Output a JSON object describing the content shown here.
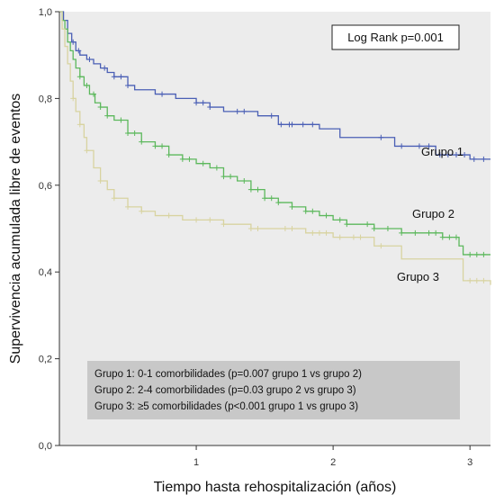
{
  "chart_data": {
    "type": "line",
    "xlabel": "Tiempo hasta rehospitalización (años)",
    "ylabel": "Supervivencia acumulada libre de eventos",
    "xlim": [
      0,
      3.15
    ],
    "ylim": [
      0,
      1.0
    ],
    "x_ticks": [
      {
        "value": 1,
        "label": "1"
      },
      {
        "value": 2,
        "label": "2"
      },
      {
        "value": 3,
        "label": "3"
      }
    ],
    "y_ticks": [
      {
        "value": 0.0,
        "label": "0,0"
      },
      {
        "value": 0.2,
        "label": "0,2"
      },
      {
        "value": 0.4,
        "label": "0,4"
      },
      {
        "value": 0.6,
        "label": "0,6"
      },
      {
        "value": 0.8,
        "label": "0,8"
      },
      {
        "value": 1.0,
        "label": "1,0"
      }
    ],
    "grid": false,
    "background_color": "#ececec",
    "stats_box": "Log Rank p=0.001",
    "series": [
      {
        "name": "Grupo 1",
        "color": "#4a5fb5",
        "x": [
          0,
          0.03,
          0.06,
          0.09,
          0.12,
          0.15,
          0.2,
          0.25,
          0.3,
          0.35,
          0.4,
          0.5,
          0.55,
          0.6,
          0.7,
          0.8,
          0.85,
          0.95,
          1.0,
          1.05,
          1.1,
          1.2,
          1.3,
          1.45,
          1.6,
          1.75,
          1.9,
          2.0,
          2.05,
          2.2,
          2.3,
          2.45,
          2.6,
          2.75,
          2.85,
          3.0,
          3.15
        ],
        "y": [
          1.0,
          0.98,
          0.95,
          0.93,
          0.91,
          0.9,
          0.89,
          0.88,
          0.87,
          0.86,
          0.85,
          0.83,
          0.82,
          0.82,
          0.81,
          0.81,
          0.8,
          0.8,
          0.79,
          0.79,
          0.78,
          0.77,
          0.77,
          0.76,
          0.74,
          0.74,
          0.73,
          0.73,
          0.71,
          0.71,
          0.71,
          0.69,
          0.69,
          0.67,
          0.67,
          0.66,
          0.66
        ],
        "censor_x": [
          0.1,
          0.14,
          0.22,
          0.33,
          0.4,
          0.45,
          0.5,
          0.75,
          1.0,
          1.05,
          1.1,
          1.3,
          1.35,
          1.55,
          1.62,
          1.68,
          1.7,
          1.78,
          1.85,
          2.35,
          2.5,
          2.63,
          2.7,
          2.78,
          2.84,
          2.9,
          2.96,
          3.03,
          3.1
        ]
      },
      {
        "name": "Grupo 2",
        "color": "#5cb85c",
        "x": [
          0,
          0.02,
          0.04,
          0.06,
          0.08,
          0.1,
          0.12,
          0.15,
          0.18,
          0.22,
          0.26,
          0.3,
          0.35,
          0.4,
          0.5,
          0.6,
          0.7,
          0.8,
          0.9,
          1.0,
          1.1,
          1.2,
          1.3,
          1.4,
          1.5,
          1.6,
          1.7,
          1.8,
          1.9,
          2.0,
          2.1,
          2.2,
          2.3,
          2.4,
          2.5,
          2.6,
          2.7,
          2.8,
          2.9,
          2.92,
          2.95,
          3.15
        ],
        "y": [
          1.0,
          0.98,
          0.96,
          0.93,
          0.91,
          0.89,
          0.87,
          0.85,
          0.83,
          0.81,
          0.79,
          0.78,
          0.76,
          0.75,
          0.72,
          0.7,
          0.69,
          0.67,
          0.66,
          0.65,
          0.64,
          0.62,
          0.61,
          0.59,
          0.57,
          0.56,
          0.55,
          0.54,
          0.53,
          0.52,
          0.51,
          0.51,
          0.5,
          0.5,
          0.49,
          0.49,
          0.49,
          0.48,
          0.48,
          0.46,
          0.44,
          0.44
        ],
        "censor_x": [
          0.15,
          0.2,
          0.25,
          0.3,
          0.35,
          0.45,
          0.5,
          0.55,
          0.6,
          0.7,
          0.75,
          0.8,
          0.9,
          0.95,
          1.05,
          1.15,
          1.2,
          1.25,
          1.35,
          1.4,
          1.45,
          1.5,
          1.55,
          1.6,
          1.7,
          1.8,
          1.85,
          1.95,
          2.05,
          2.1,
          2.25,
          2.3,
          2.4,
          2.5,
          2.6,
          2.7,
          2.75,
          2.8,
          2.85,
          2.9,
          3.0,
          3.05,
          3.1
        ]
      },
      {
        "name": "Grupo 3",
        "color": "#d8d3a0",
        "x": [
          0,
          0.02,
          0.04,
          0.06,
          0.08,
          0.1,
          0.12,
          0.15,
          0.18,
          0.2,
          0.25,
          0.3,
          0.35,
          0.4,
          0.5,
          0.6,
          0.7,
          0.8,
          0.9,
          1.0,
          1.2,
          1.4,
          1.6,
          1.8,
          2.0,
          2.3,
          2.5,
          2.8,
          2.9,
          2.95,
          3.15
        ],
        "y": [
          1.0,
          0.96,
          0.92,
          0.88,
          0.84,
          0.8,
          0.77,
          0.74,
          0.71,
          0.68,
          0.64,
          0.61,
          0.59,
          0.57,
          0.55,
          0.54,
          0.53,
          0.53,
          0.52,
          0.52,
          0.51,
          0.5,
          0.5,
          0.49,
          0.48,
          0.46,
          0.43,
          0.43,
          0.43,
          0.38,
          0.37
        ],
        "censor_x": [
          0.1,
          0.15,
          0.2,
          0.3,
          0.4,
          0.5,
          0.6,
          0.8,
          1.0,
          1.1,
          1.2,
          1.4,
          1.45,
          1.65,
          1.7,
          1.85,
          1.9,
          1.95,
          2.05,
          2.15,
          2.2,
          2.35,
          3.0,
          3.05,
          3.1
        ]
      }
    ],
    "legend_note": [
      "Grupo 1: 0-1 comorbilidades (p=0.007 grupo 1 vs grupo 2)",
      "Grupo 2: 2-4 comorbilidades (p=0.03 grupo 2 vs grupo 3)",
      "Grupo 3: ≥5 comorbilidades (p<0.001 grupo 1 vs grupo 3)"
    ],
    "legend_note_color": "#c8c8c8"
  }
}
